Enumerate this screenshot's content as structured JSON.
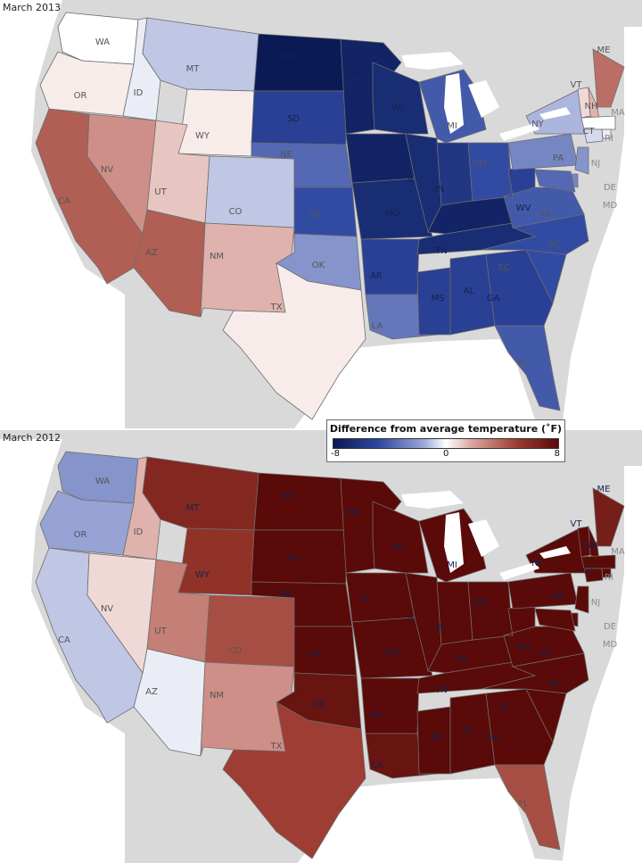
{
  "maps": [
    {
      "title": "March 2013",
      "labels": {
        "WA": "WA",
        "OR": "OR",
        "ID": "ID",
        "MT": "MT",
        "WY": "WY",
        "CA": "CA",
        "NV": "NV",
        "UT": "UT",
        "CO": "CO",
        "AZ": "AZ",
        "NM": "NM",
        "TX": "TX",
        "ND": "ND",
        "SD": "SD",
        "NE": "NE",
        "KS": "KS",
        "OK": "OK",
        "MN": "MN",
        "IA": "IA",
        "MO": "MO",
        "AR": "AR",
        "LA": "LA",
        "WI": "WI",
        "IL": "IL",
        "MS": "MS",
        "MI": "MI",
        "IN": "IN",
        "KY": "KY",
        "TN": "TN",
        "AL": "AL",
        "OH": "OH",
        "GA": "GA",
        "FL": "FL",
        "SC": "SC",
        "NC": "NC",
        "VA": "VA",
        "WV": "WV",
        "PA": "PA",
        "NY": "NY",
        "ME": "ME",
        "VT": "VT",
        "NH": "NH",
        "MA": "MA",
        "RI": "RI",
        "CT": "CT",
        "NJ": "NJ",
        "DE": "DE",
        "MD": "MD"
      },
      "state_anomaly_f": {
        "WA": 0,
        "OR": 0.5,
        "ID": -0.5,
        "MT": -1.5,
        "WY": 0.5,
        "CA": 4.5,
        "NV": 3,
        "UT": 1.5,
        "CO": -1.5,
        "AZ": 4.5,
        "NM": 2,
        "TX": 0.5,
        "ND": -8,
        "SD": -6,
        "NE": -4.5,
        "KS": -5.5,
        "OK": -3,
        "MN": -7.5,
        "IA": -7.5,
        "MO": -7,
        "AR": -6,
        "LA": -4,
        "WI": -7,
        "IL": -7,
        "MS": -6,
        "MI": -5,
        "IN": -6.5,
        "KY": -7.5,
        "TN": -7,
        "AL": -6,
        "OH": -5.5,
        "GA": -6,
        "FL": -5,
        "SC": -5.5,
        "NC": -5.5,
        "VA": -5,
        "WV": -6,
        "PA": -3.5,
        "NY": -2,
        "ME": 4,
        "VT": 1,
        "NH": 2,
        "MA": 0,
        "RI": -0.5,
        "CT": -1,
        "NJ": -3,
        "DE": -3.5,
        "MD": -4.5
      }
    },
    {
      "title": "March 2012",
      "labels": {
        "WA": "WA",
        "OR": "OR",
        "ID": "ID",
        "MT": "MT",
        "WY": "WY",
        "CA": "CA",
        "NV": "NV",
        "UT": "UT",
        "CO": "CO",
        "AZ": "AZ",
        "NM": "NM",
        "TX": "TX",
        "ND": "ND",
        "SD": "SD",
        "NE": "NE",
        "KS": "KS",
        "OK": "OK",
        "MN": "MN",
        "IA": "IA",
        "MO": "MO",
        "AR": "AR",
        "LA": "LA",
        "WI": "WI",
        "IL": "IL",
        "MS": "MS",
        "MI": "MI",
        "IN": "IN",
        "KY": "KY",
        "TN": "TN",
        "AL": "AL",
        "OH": "OH",
        "GA": "GA",
        "FL": "FL",
        "SC": "SC",
        "NC": "NC",
        "VA": "VA",
        "WV": "WV",
        "PA": "PA",
        "NY": "NY",
        "ME": "ME",
        "VT": "VT",
        "NH": "NH",
        "MA": "MA",
        "RI": "RI",
        "CT": "CT",
        "NJ": "NJ",
        "DE": "DE",
        "MD": "MD"
      },
      "state_anomaly_f": {
        "WA": -3,
        "OR": -2.5,
        "ID": 2,
        "MT": 6.5,
        "WY": 6,
        "CA": -1.5,
        "NV": 1,
        "UT": 3.5,
        "CO": 5,
        "AZ": -0.5,
        "NM": 3,
        "TX": 5.5,
        "ND": 8,
        "SD": 8,
        "NE": 8,
        "KS": 8,
        "OK": 7.5,
        "MN": 8,
        "IA": 8,
        "MO": 8,
        "AR": 8,
        "LA": 7.5,
        "WI": 8,
        "IL": 8,
        "MS": 8,
        "MI": 8,
        "IN": 8,
        "KY": 8,
        "TN": 8,
        "AL": 8,
        "OH": 8,
        "GA": 8,
        "FL": 5,
        "SC": 8,
        "NC": 8,
        "VA": 8,
        "WV": 8,
        "PA": 8,
        "NY": 8,
        "ME": 7,
        "VT": 8,
        "NH": 8,
        "MA": 8,
        "RI": 8,
        "CT": 8,
        "NJ": 8,
        "DE": 8,
        "MD": 8
      }
    }
  ],
  "legend": {
    "title": "Difference from average temperature (˚F)",
    "min_label": "-8",
    "mid_label": "0",
    "max_label": "8",
    "min": -8,
    "max": 8,
    "colors": {
      "cold": "#0a1a55",
      "neutral": "#ffffff",
      "warm": "#5a0a08"
    }
  },
  "colors": {
    "land_bg": "#d9d9d9",
    "water": "#ffffff",
    "border": "#6d6d6d"
  }
}
